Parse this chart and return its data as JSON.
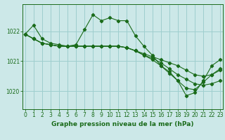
{
  "background_color": "#cce8e8",
  "grid_color": "#9ecece",
  "line_color": "#1a6b1a",
  "title": "Graphe pression niveau de la mer (hPa)",
  "xlabel_ticks": [
    0,
    1,
    2,
    3,
    4,
    5,
    6,
    7,
    8,
    9,
    10,
    11,
    12,
    13,
    14,
    15,
    16,
    17,
    18,
    19,
    20,
    21,
    22,
    23
  ],
  "yticks": [
    1020,
    1021,
    1022
  ],
  "ylim": [
    1019.4,
    1022.9
  ],
  "xlim": [
    -0.3,
    23.3
  ],
  "series": [
    [
      1021.9,
      1022.2,
      1021.75,
      1021.6,
      1021.55,
      1021.5,
      1021.55,
      1022.05,
      1022.55,
      1022.35,
      1022.45,
      1022.35,
      1022.35,
      1021.85,
      1021.5,
      1021.2,
      1020.85,
      1020.65,
      1020.35,
      1020.1,
      1020.05,
      1020.3,
      1020.55,
      1020.75
    ],
    [
      1021.9,
      1021.75,
      1021.6,
      1021.55,
      1021.5,
      1021.5,
      1021.5,
      1021.5,
      1021.5,
      1021.5,
      1021.5,
      1021.5,
      1021.45,
      1021.35,
      1021.25,
      1021.15,
      1021.05,
      1020.95,
      1020.85,
      1020.7,
      1020.55,
      1020.5,
      1020.55,
      1020.7
    ],
    [
      1021.9,
      1021.75,
      1021.6,
      1021.55,
      1021.5,
      1021.5,
      1021.5,
      1021.5,
      1021.5,
      1021.5,
      1021.5,
      1021.5,
      1021.45,
      1021.35,
      1021.2,
      1021.1,
      1020.95,
      1020.75,
      1020.55,
      1020.4,
      1020.25,
      1020.2,
      1020.25,
      1020.35
    ],
    [
      1021.9,
      1021.75,
      1021.6,
      1021.55,
      1021.5,
      1021.5,
      1021.5,
      1021.5,
      1021.5,
      1021.5,
      1021.5,
      1021.5,
      1021.45,
      1021.35,
      1021.2,
      1021.05,
      1020.85,
      1020.6,
      1020.35,
      1019.85,
      1019.95,
      1020.35,
      1020.85,
      1021.05
    ]
  ]
}
